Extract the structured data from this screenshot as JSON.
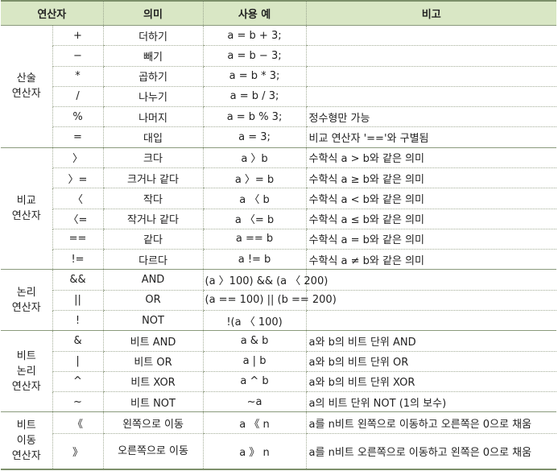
{
  "headers": [
    "연산자",
    "의미",
    "사용 예",
    "비고"
  ],
  "groups": [
    {
      "name": "산술\n연산자",
      "rows": [
        {
          "op": "+",
          "meaning": "더하기",
          "example": "a = b + 3;",
          "note": ""
        },
        {
          "op": "−",
          "meaning": "빼기",
          "example": "a = b − 3;",
          "note": ""
        },
        {
          "op": "*",
          "meaning": "곱하기",
          "example": "a = b * 3;",
          "note": ""
        },
        {
          "op": "/",
          "meaning": "나누기",
          "example": "a = b / 3;",
          "note": ""
        },
        {
          "op": "%",
          "meaning": "나머지",
          "example": "a = b % 3;",
          "note": "정수형만 가능"
        },
        {
          "op": "=",
          "meaning": "대입",
          "example": "a = 3;",
          "note": "비교 연산자 '=='와 구별됨"
        }
      ]
    },
    {
      "name": "비교\n연산자",
      "rows": [
        {
          "op": "〉",
          "meaning": "크다",
          "example": "a 〉b",
          "note": "수학식 a > b와 같은 의미"
        },
        {
          "op": "〉=",
          "meaning": "크거나 같다",
          "example": "a 〉= b",
          "note": "수학식 a ≥ b와 같은 의미"
        },
        {
          "op": "〈",
          "meaning": "작다",
          "example": "a 〈 b",
          "note": "수학식 a < b와 같은 의미"
        },
        {
          "op": "〈=",
          "meaning": "작거나 같다",
          "example": "a 〈= b",
          "note": "수학식 a ≤ b와 같은 의미"
        },
        {
          "op": "==",
          "meaning": "같다",
          "example": "a == b",
          "note": "수학식 a = b와 같은 의미"
        },
        {
          "op": "!=",
          "meaning": "다르다",
          "example": "a != b",
          "note": "수학식 a ≠ b와 같은 의미"
        }
      ]
    },
    {
      "name": "논리\n연산자",
      "rows": [
        {
          "op": "&&",
          "meaning": "AND",
          "example": "(a 〉100) && (a 〈 200)",
          "note": ""
        },
        {
          "op": "||",
          "meaning": "OR",
          "example": "(a == 100) || (b == 200)",
          "note": ""
        },
        {
          "op": "!",
          "meaning": "NOT",
          "example": "!(a 〈 100)",
          "note": ""
        }
      ]
    },
    {
      "name": "비트\n논리\n연산자",
      "rows": [
        {
          "op": "&",
          "meaning": "비트 AND",
          "example": "a & b",
          "note": "a와 b의 비트 단위 AND"
        },
        {
          "op": "|",
          "meaning": "비트 OR",
          "example": "a | b",
          "note": "a와 b의 비트 단위 OR"
        },
        {
          "op": "^",
          "meaning": "비트 XOR",
          "example": "a ^ b",
          "note": "a와 b의 비트 단위 XOR"
        },
        {
          "op": "~",
          "meaning": "비트 NOT",
          "example": "~a",
          "note": "a의 비트 단위 NOT (1의 보수)"
        }
      ]
    },
    {
      "name": "비트\n이동\n연산자",
      "rows": [
        {
          "op": "《",
          "meaning": "왼쪽으로 이동",
          "example": "a 《 n",
          "note": "a를 n비트 왼쪽으로 이동하고 오른쪽은 0으로 채움"
        },
        {
          "op": "》",
          "meaning": "오른쪽으로 이동",
          "example": "a 》 n",
          "note": "a를 n비트 오른쪽으로 이동하고 왼쪽은 0으로 채움"
        }
      ]
    }
  ]
}
